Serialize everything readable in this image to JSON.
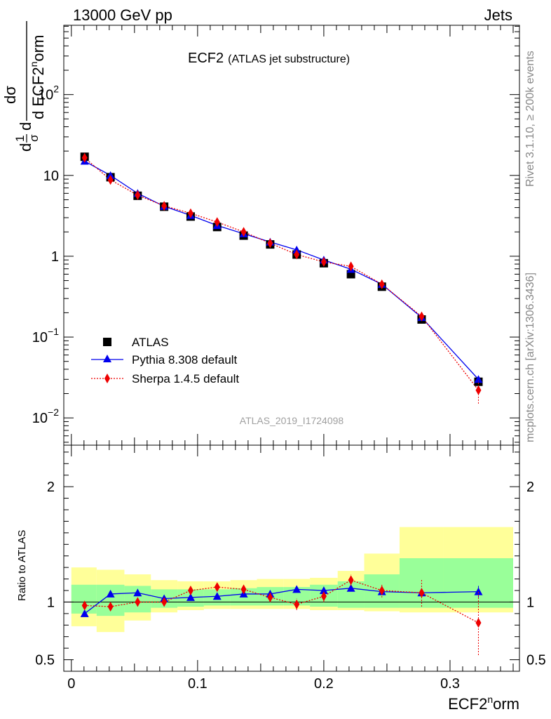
{
  "header": {
    "left": "13000 GeV pp",
    "right": "Jets"
  },
  "chart_data": {
    "type": "line",
    "title": "ECF2",
    "subtitle": "(ATLAS jet substructure)",
    "xlabel": "ECF2^norm",
    "xlabel_main": "ECF2",
    "xlabel_sup": "n",
    "xlabel_tail": "orm",
    "ylabel_parts": {
      "d1": "d",
      "n1": "1",
      "s1": "σ",
      "d2": "d",
      "dsig": "dσ",
      "den": "d ECF2",
      "sup": "n",
      "tail": "orm"
    },
    "ratio_ylabel": "Ratio to ATLAS",
    "analysis_id": "ATLAS_2019_I1724098",
    "xlim": [
      -0.006,
      0.355
    ],
    "ylim_main": [
      0.0046,
      720
    ],
    "ylim_ratio": [
      0.4,
      2.36
    ],
    "x_ticks": [
      {
        "v": 0,
        "l": "0"
      },
      {
        "v": 0.1,
        "l": "0.1"
      },
      {
        "v": 0.2,
        "l": "0.2"
      },
      {
        "v": 0.3,
        "l": "0.3"
      }
    ],
    "y_ticks_main": [
      {
        "v": 0.01,
        "base": "10",
        "exp": "−2"
      },
      {
        "v": 0.1,
        "base": "10",
        "exp": "−1"
      },
      {
        "v": 1,
        "base": "1",
        "exp": ""
      },
      {
        "v": 10,
        "base": "10",
        "exp": ""
      },
      {
        "v": 100,
        "base": "10",
        "exp": "2"
      }
    ],
    "y_ticks_ratio": [
      {
        "v": 0.5,
        "l": "0.5"
      },
      {
        "v": 1,
        "l": "1"
      },
      {
        "v": 2,
        "l": "2"
      }
    ],
    "bin_edges": [
      0,
      0.02,
      0.042,
      0.063,
      0.084,
      0.105,
      0.126,
      0.147,
      0.168,
      0.189,
      0.211,
      0.232,
      0.26,
      0.295,
      0.35
    ],
    "band_green": [
      [
        0.9,
        1.15
      ],
      [
        0.88,
        1.15
      ],
      [
        0.91,
        1.14
      ],
      [
        0.95,
        1.11
      ],
      [
        0.96,
        1.11
      ],
      [
        0.97,
        1.11
      ],
      [
        0.97,
        1.12
      ],
      [
        0.97,
        1.13
      ],
      [
        0.97,
        1.13
      ],
      [
        0.96,
        1.15
      ],
      [
        0.95,
        1.18
      ],
      [
        0.95,
        1.24
      ],
      [
        0.95,
        1.38
      ],
      [
        0.95,
        1.38
      ]
    ],
    "band_yellow": [
      [
        0.79,
        1.3
      ],
      [
        0.74,
        1.28
      ],
      [
        0.84,
        1.24
      ],
      [
        0.91,
        1.19
      ],
      [
        0.93,
        1.18
      ],
      [
        0.94,
        1.18
      ],
      [
        0.94,
        1.19
      ],
      [
        0.94,
        1.2
      ],
      [
        0.94,
        1.2
      ],
      [
        0.93,
        1.21
      ],
      [
        0.93,
        1.27
      ],
      [
        0.92,
        1.42
      ],
      [
        0.91,
        1.65
      ],
      [
        0.91,
        1.65
      ]
    ],
    "series": [
      {
        "name": "ATLAS",
        "color": "#000000",
        "marker": "square",
        "x": [
          0.0105,
          0.031,
          0.0525,
          0.0735,
          0.0945,
          0.1155,
          0.1365,
          0.1575,
          0.1785,
          0.2,
          0.2215,
          0.246,
          0.2775,
          0.3225
        ],
        "y": [
          17.0,
          9.5,
          5.6,
          4.1,
          3.1,
          2.3,
          1.8,
          1.4,
          1.05,
          0.82,
          0.6,
          0.42,
          0.165,
          0.028
        ]
      },
      {
        "name": "Pythia 8.308 default",
        "color": "#0000ee",
        "marker": "triangle",
        "dash": "",
        "x": [
          0.0105,
          0.031,
          0.0525,
          0.0735,
          0.0945,
          0.1155,
          0.1365,
          0.1575,
          0.1785,
          0.2,
          0.2215,
          0.246,
          0.2775,
          0.3225
        ],
        "y": [
          15.0,
          10.0,
          6.0,
          4.15,
          3.2,
          2.4,
          1.9,
          1.5,
          1.2,
          0.9,
          0.69,
          0.45,
          0.175,
          0.03
        ],
        "ratio": [
          0.9,
          1.07,
          1.08,
          1.03,
          1.04,
          1.05,
          1.07,
          1.07,
          1.11,
          1.1,
          1.12,
          1.09,
          1.08,
          1.09
        ],
        "ratio_err": [
          0,
          0,
          0,
          0,
          0,
          0,
          0,
          0,
          0,
          0,
          0,
          0,
          0.04,
          0.05
        ]
      },
      {
        "name": "Sherpa 1.4.5 default",
        "color": "#ee0000",
        "marker": "diamond",
        "dash": "2,2",
        "x": [
          0.0105,
          0.031,
          0.0525,
          0.0735,
          0.0945,
          0.1155,
          0.1365,
          0.1575,
          0.1785,
          0.2,
          0.2215,
          0.246,
          0.2775,
          0.3225
        ],
        "y": [
          16.5,
          8.8,
          5.7,
          4.2,
          3.4,
          2.65,
          2.0,
          1.45,
          1.05,
          0.85,
          0.75,
          0.45,
          0.18,
          0.022
        ],
        "ratio": [
          0.97,
          0.96,
          1.0,
          1.0,
          1.1,
          1.13,
          1.11,
          1.04,
          0.98,
          1.05,
          1.19,
          1.1,
          1.08,
          0.82
        ],
        "ratio_err": [
          0,
          0,
          0,
          0.02,
          0.03,
          0.03,
          0.03,
          0.04,
          0.05,
          0.05,
          0.05,
          0.06,
          0.12,
          0.28
        ]
      }
    ],
    "legend": [
      "ATLAS",
      "Pythia 8.308 default",
      "Sherpa 1.4.5 default"
    ],
    "side_text_1": "Rivet 3.1.10, ≥ 200k events",
    "side_text_2": "mcplots.cern.ch [arXiv:1306.3436]"
  }
}
